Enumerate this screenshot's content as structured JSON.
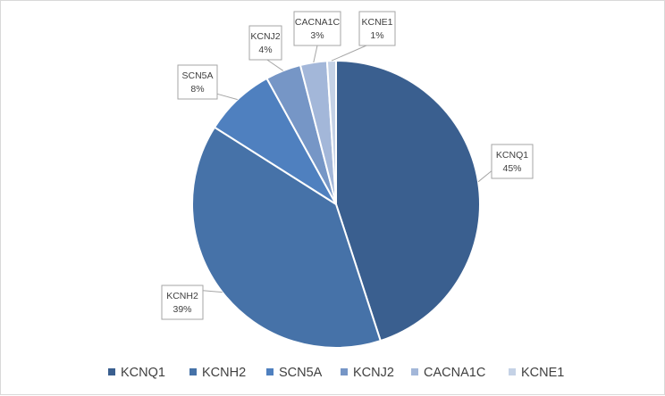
{
  "chart_data": {
    "type": "pie",
    "title": "",
    "legend_position": "bottom",
    "start_angle_deg": 0,
    "direction": "clockwise",
    "categories": [
      "KCNQ1",
      "KCNH2",
      "SCN5A",
      "KCNJ2",
      "CACNA1C",
      "KCNE1"
    ],
    "values": [
      45,
      39,
      8,
      4,
      3,
      1
    ],
    "data_labels": [
      "45%",
      "39%",
      "8%",
      "4%",
      "3%",
      "1%"
    ],
    "colors": [
      "#3a5f8f",
      "#4672a8",
      "#4f80bf",
      "#7696c6",
      "#a3b7d9",
      "#c5d2e6"
    ]
  }
}
